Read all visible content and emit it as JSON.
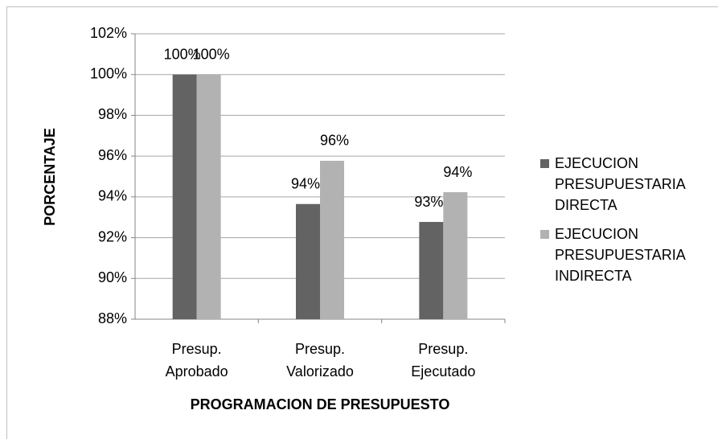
{
  "chart_data": {
    "type": "bar",
    "y_label": "PORCENTAJE",
    "x_label": "PROGRAMACION DE PRESUPUESTO",
    "categories": [
      "Presup. Aprobado",
      "Presup. Valorizado",
      "Presup. Ejecutado"
    ],
    "series": [
      {
        "name": "EJECUCION PRESUPUESTARIA DIRECTA",
        "color": "#636363",
        "values": [
          100,
          93.65,
          92.77
        ],
        "value_labels": [
          "100%",
          "94%",
          "93%"
        ]
      },
      {
        "name": "EJECUCION PRESUPUESTARIA INDIRECTA",
        "color": "#b2b2b2",
        "values": [
          100,
          95.77,
          94.23
        ],
        "value_labels": [
          "100%",
          "96%",
          "94%"
        ]
      }
    ],
    "ylim": [
      88,
      102
    ],
    "yticks": [
      {
        "value": 88,
        "label": "88%"
      },
      {
        "value": 90,
        "label": "90%"
      },
      {
        "value": 92,
        "label": "92%"
      },
      {
        "value": 94,
        "label": "94%"
      },
      {
        "value": 96,
        "label": "96%"
      },
      {
        "value": 98,
        "label": "98%"
      },
      {
        "value": 100,
        "label": "100%"
      },
      {
        "value": 102,
        "label": "102%"
      }
    ],
    "grid": true,
    "legend": "right"
  }
}
